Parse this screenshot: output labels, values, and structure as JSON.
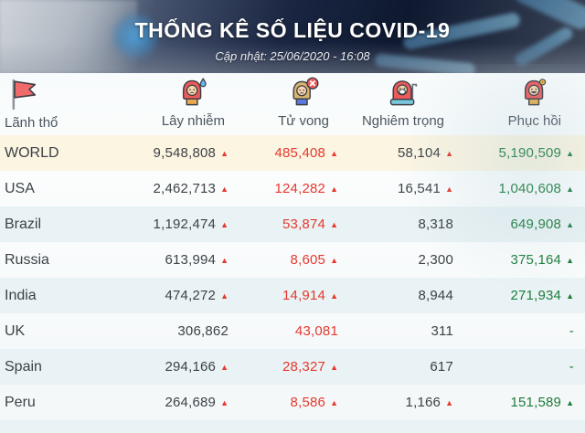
{
  "header": {
    "title": "THỐNG KÊ SỐ LIỆU COVID-19",
    "subtitle": "Cập nhật: 25/06/2020 - 16:08"
  },
  "table": {
    "columns": [
      {
        "label": "Lãnh thổ",
        "icon": "flag-icon"
      },
      {
        "label": "Lây nhiễm",
        "icon": "infected-person-icon"
      },
      {
        "label": "Tử vong",
        "icon": "deceased-person-icon"
      },
      {
        "label": "Nghiêm trọng",
        "icon": "critical-patient-icon"
      },
      {
        "label": "Phục hồi",
        "icon": "recovered-person-icon"
      }
    ],
    "rows": [
      {
        "territory": "WORLD",
        "highlight": true,
        "infected": {
          "v": "9,548,808",
          "c": "dark",
          "a": "red"
        },
        "deaths": {
          "v": "485,408",
          "c": "red",
          "a": "red"
        },
        "serious": {
          "v": "58,104",
          "c": "dark",
          "a": "red"
        },
        "recovered": {
          "v": "5,190,509",
          "c": "green",
          "a": "green"
        }
      },
      {
        "territory": "USA",
        "highlight": false,
        "infected": {
          "v": "2,462,713",
          "c": "dark",
          "a": "red"
        },
        "deaths": {
          "v": "124,282",
          "c": "red",
          "a": "red"
        },
        "serious": {
          "v": "16,541",
          "c": "dark",
          "a": "red"
        },
        "recovered": {
          "v": "1,040,608",
          "c": "green",
          "a": "green"
        }
      },
      {
        "territory": "Brazil",
        "highlight": false,
        "infected": {
          "v": "1,192,474",
          "c": "dark",
          "a": "red"
        },
        "deaths": {
          "v": "53,874",
          "c": "red",
          "a": "red"
        },
        "serious": {
          "v": "8,318",
          "c": "dark",
          "a": null
        },
        "recovered": {
          "v": "649,908",
          "c": "green",
          "a": "green"
        }
      },
      {
        "territory": "Russia",
        "highlight": false,
        "infected": {
          "v": "613,994",
          "c": "dark",
          "a": "red"
        },
        "deaths": {
          "v": "8,605",
          "c": "red",
          "a": "red"
        },
        "serious": {
          "v": "2,300",
          "c": "dark",
          "a": null
        },
        "recovered": {
          "v": "375,164",
          "c": "green",
          "a": "green"
        }
      },
      {
        "territory": "India",
        "highlight": false,
        "infected": {
          "v": "474,272",
          "c": "dark",
          "a": "red"
        },
        "deaths": {
          "v": "14,914",
          "c": "red",
          "a": "red"
        },
        "serious": {
          "v": "8,944",
          "c": "dark",
          "a": null
        },
        "recovered": {
          "v": "271,934",
          "c": "green",
          "a": "green"
        }
      },
      {
        "territory": "UK",
        "highlight": false,
        "infected": {
          "v": "306,862",
          "c": "dark",
          "a": null
        },
        "deaths": {
          "v": "43,081",
          "c": "red",
          "a": null
        },
        "serious": {
          "v": "311",
          "c": "dark",
          "a": null
        },
        "recovered": {
          "v": "-",
          "c": "green",
          "a": null
        }
      },
      {
        "territory": "Spain",
        "highlight": false,
        "infected": {
          "v": "294,166",
          "c": "dark",
          "a": "red"
        },
        "deaths": {
          "v": "28,327",
          "c": "red",
          "a": "red"
        },
        "serious": {
          "v": "617",
          "c": "dark",
          "a": null
        },
        "recovered": {
          "v": "-",
          "c": "green",
          "a": null
        }
      },
      {
        "territory": "Peru",
        "highlight": false,
        "infected": {
          "v": "264,689",
          "c": "dark",
          "a": "red"
        },
        "deaths": {
          "v": "8,586",
          "c": "red",
          "a": "red"
        },
        "serious": {
          "v": "1,166",
          "c": "dark",
          "a": "red"
        },
        "recovered": {
          "v": "151,589",
          "c": "green",
          "a": "green"
        }
      }
    ]
  },
  "colors": {
    "increase_red": "#e6392f",
    "recovered_green": "#1e7d3c",
    "text_dark": "#3d4247",
    "world_row_bg": "#fcf5e2",
    "alt_row_bg": "#e9f2f4",
    "banner_navy": "#1a2642"
  }
}
